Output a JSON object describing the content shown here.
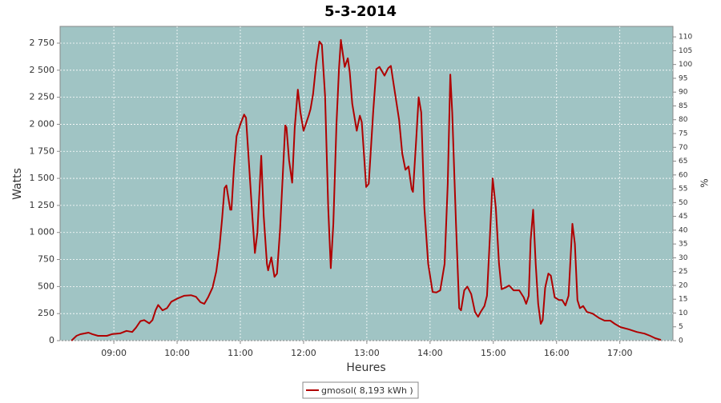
{
  "chart_data": {
    "type": "line",
    "title": "5-3-2014",
    "x_label": "Heures",
    "y_label": "Watts",
    "y2_label": "%",
    "x": [
      8.33,
      8.41,
      8.47,
      8.6,
      8.66,
      8.75,
      8.89,
      8.97,
      9.1,
      9.2,
      9.29,
      9.35,
      9.42,
      9.48,
      9.56,
      9.61,
      9.66,
      9.7,
      9.77,
      9.84,
      9.91,
      10.01,
      10.11,
      10.22,
      10.3,
      10.37,
      10.43,
      10.49,
      10.56,
      10.62,
      10.67,
      10.71,
      10.75,
      10.78,
      10.84,
      10.86,
      10.9,
      10.94,
      11.0,
      11.06,
      11.09,
      11.14,
      11.19,
      11.23,
      11.27,
      11.33,
      11.37,
      11.42,
      11.44,
      11.49,
      11.54,
      11.58,
      11.63,
      11.67,
      11.71,
      11.73,
      11.77,
      11.82,
      11.86,
      11.91,
      11.95,
      12.0,
      12.08,
      12.11,
      12.15,
      12.2,
      12.25,
      12.29,
      12.34,
      12.39,
      12.43,
      12.47,
      12.52,
      12.56,
      12.59,
      12.65,
      12.7,
      12.73,
      12.77,
      12.84,
      12.89,
      12.92,
      12.99,
      13.03,
      13.1,
      13.15,
      13.2,
      13.28,
      13.34,
      13.38,
      13.43,
      13.51,
      13.56,
      13.61,
      13.66,
      13.71,
      13.73,
      13.78,
      13.82,
      13.86,
      13.91,
      13.97,
      14.04,
      14.1,
      14.16,
      14.23,
      14.28,
      14.32,
      14.35,
      14.41,
      14.46,
      14.49,
      14.54,
      14.59,
      14.65,
      14.71,
      14.76,
      14.8,
      14.86,
      14.9,
      14.95,
      14.99,
      15.04,
      15.09,
      15.13,
      15.19,
      15.25,
      15.32,
      15.41,
      15.48,
      15.52,
      15.56,
      15.59,
      15.63,
      15.67,
      15.71,
      15.75,
      15.78,
      15.82,
      15.87,
      15.91,
      15.97,
      16.04,
      16.09,
      16.14,
      16.19,
      16.23,
      16.25,
      16.29,
      16.33,
      16.37,
      16.42,
      16.48,
      16.57,
      16.67,
      16.76,
      16.85,
      16.92,
      17.01,
      17.14,
      17.27,
      17.39,
      17.48,
      17.56,
      17.65
    ],
    "series": [
      {
        "name": "gmosol( 8,193 kWh )",
        "color": "#b00000",
        "values": [
          0,
          44,
          59,
          74,
          60,
          44,
          44,
          60,
          67,
          90,
          80,
          120,
          180,
          190,
          160,
          190,
          280,
          330,
          280,
          300,
          360,
          390,
          415,
          420,
          405,
          355,
          340,
          400,
          490,
          640,
          860,
          1115,
          1410,
          1435,
          1210,
          1210,
          1600,
          1890,
          2000,
          2090,
          2060,
          1600,
          1150,
          810,
          1000,
          1710,
          1150,
          710,
          650,
          770,
          590,
          620,
          1040,
          1520,
          1990,
          1970,
          1670,
          1460,
          1970,
          2320,
          2110,
          1940,
          2080,
          2140,
          2280,
          2560,
          2765,
          2735,
          2260,
          1230,
          670,
          1080,
          2000,
          2520,
          2780,
          2530,
          2610,
          2480,
          2190,
          1940,
          2080,
          2020,
          1420,
          1450,
          2110,
          2510,
          2530,
          2450,
          2520,
          2540,
          2350,
          2040,
          1730,
          1580,
          1610,
          1400,
          1375,
          1855,
          2250,
          2110,
          1230,
          710,
          450,
          445,
          465,
          710,
          1450,
          2460,
          2110,
          1080,
          300,
          280,
          465,
          500,
          430,
          265,
          220,
          265,
          320,
          415,
          1005,
          1500,
          1230,
          710,
          475,
          490,
          510,
          465,
          465,
          400,
          340,
          415,
          930,
          1210,
          710,
          340,
          155,
          190,
          490,
          620,
          600,
          400,
          375,
          375,
          325,
          415,
          860,
          1080,
          895,
          375,
          300,
          320,
          265,
          250,
          210,
          185,
          185,
          155,
          125,
          105,
          80,
          65,
          44,
          22,
          7
        ]
      }
    ],
    "xlim": [
      8.15,
      17.84
    ],
    "xticks": [
      {
        "value": 9,
        "label": "09:00"
      },
      {
        "value": 10,
        "label": "10:00"
      },
      {
        "value": 11,
        "label": "11:00"
      },
      {
        "value": 12,
        "label": "12:00"
      },
      {
        "value": 13,
        "label": "13:00"
      },
      {
        "value": 14,
        "label": "14:00"
      },
      {
        "value": 15,
        "label": "15:00"
      },
      {
        "value": 16,
        "label": "16:00"
      },
      {
        "value": 17,
        "label": "17:00"
      }
    ],
    "ylim": [
      0,
      2905
    ],
    "yticks": [
      0,
      250,
      500,
      750,
      {
        "value": 1000,
        "label": "1 000"
      },
      {
        "value": 1250,
        "label": "1 250"
      },
      {
        "value": 1500,
        "label": "1 500"
      },
      {
        "value": 1750,
        "label": "1 750"
      },
      {
        "value": 2000,
        "label": "2 000"
      },
      {
        "value": 2250,
        "label": "2 250"
      },
      {
        "value": 2500,
        "label": "2 500"
      },
      {
        "value": 2750,
        "label": "2 750"
      }
    ],
    "y2lim": [
      0,
      113.8
    ],
    "y2ticks": [
      0,
      5,
      10,
      15,
      20,
      25,
      30,
      35,
      40,
      45,
      50,
      55,
      60,
      65,
      70,
      75,
      80,
      85,
      90,
      95,
      100,
      105,
      110
    ],
    "grid": true,
    "background": "#a0c4c4"
  }
}
